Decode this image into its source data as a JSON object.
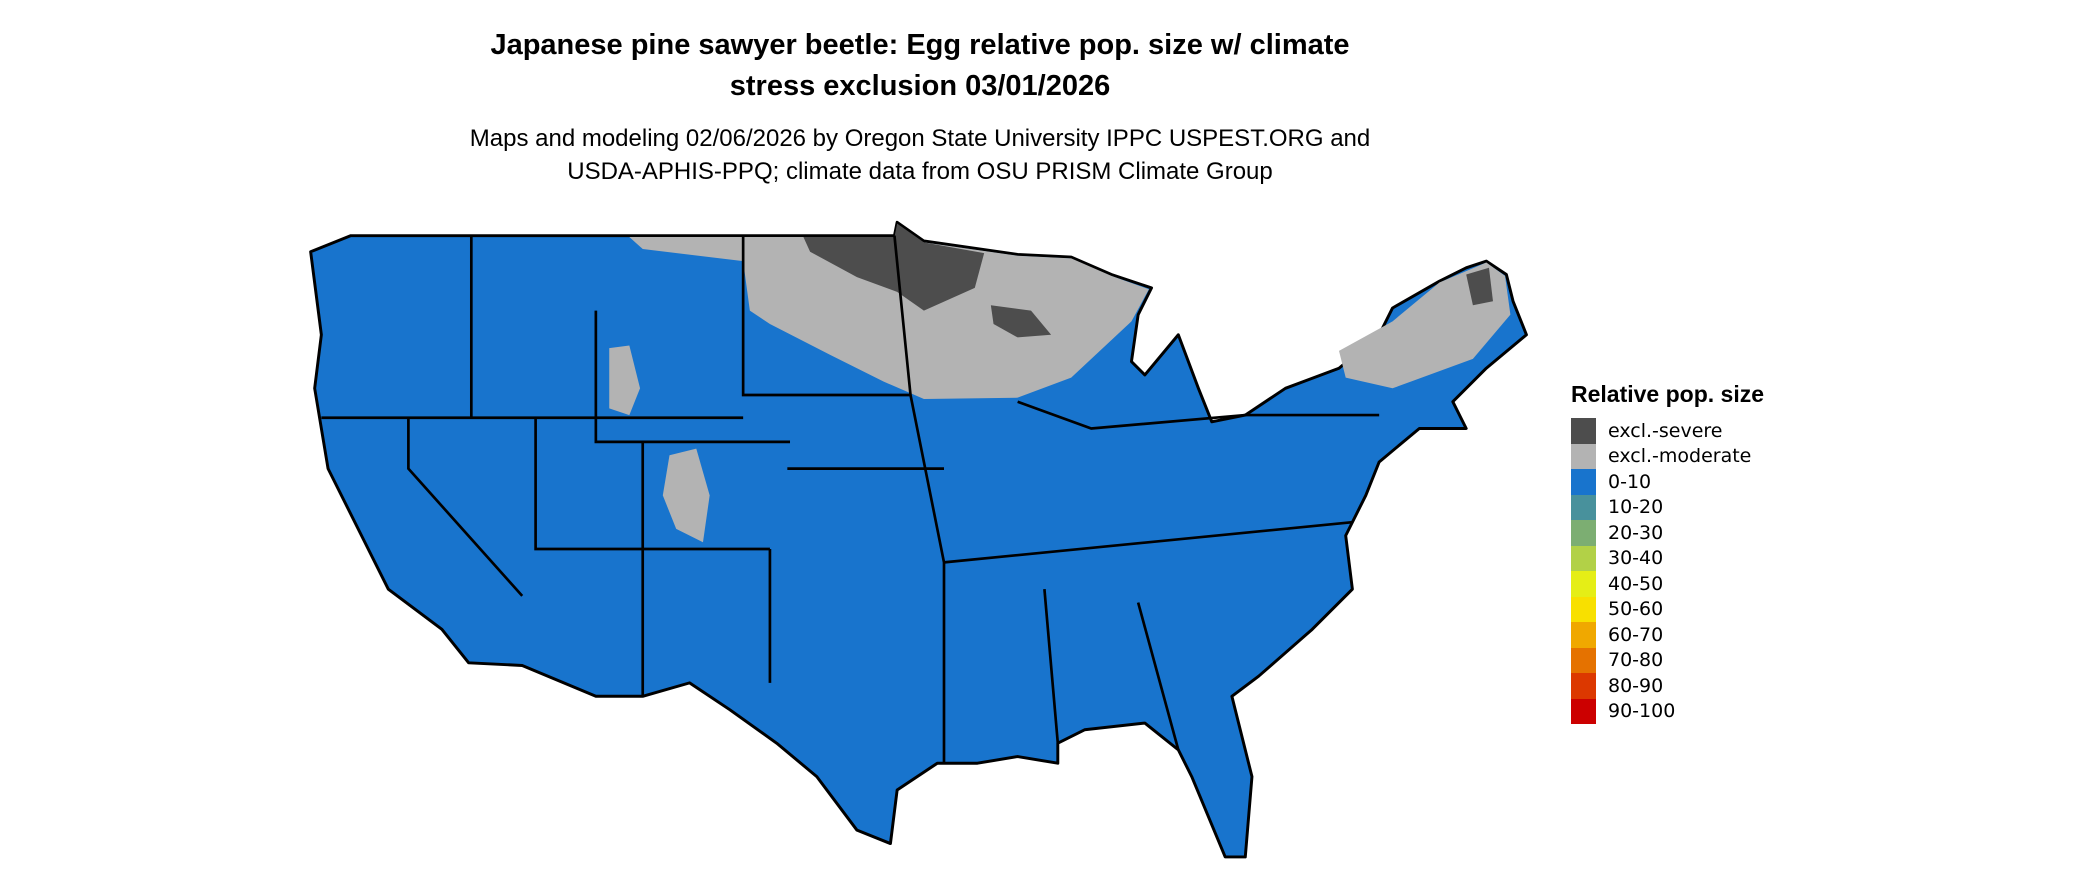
{
  "title": {
    "line1": "Japanese pine sawyer beetle: Egg relative pop. size w/ climate",
    "line2": "stress exclusion 03/01/2026"
  },
  "subtitle": {
    "line1": "Maps and modeling 02/06/2026 by Oregon State University IPPC USPEST.ORG and",
    "line2": "USDA-APHIS-PPQ; climate data from OSU PRISM Climate Group"
  },
  "legend": {
    "title": "Relative pop. size",
    "items": [
      {
        "label": "excl.-severe",
        "color": "#4d4d4d"
      },
      {
        "label": "excl.-moderate",
        "color": "#b3b3b3"
      },
      {
        "label": "0-10",
        "color": "#1874cd"
      },
      {
        "label": "10-20",
        "color": "#48919c"
      },
      {
        "label": "20-30",
        "color": "#7cae72"
      },
      {
        "label": "30-40",
        "color": "#b2d147"
      },
      {
        "label": "40-50",
        "color": "#e5ee16"
      },
      {
        "label": "50-60",
        "color": "#f8e000"
      },
      {
        "label": "60-70",
        "color": "#f0a800"
      },
      {
        "label": "70-80",
        "color": "#e57200"
      },
      {
        "label": "80-90",
        "color": "#dc3800"
      },
      {
        "label": "90-100",
        "color": "#cc0000"
      }
    ]
  }
}
